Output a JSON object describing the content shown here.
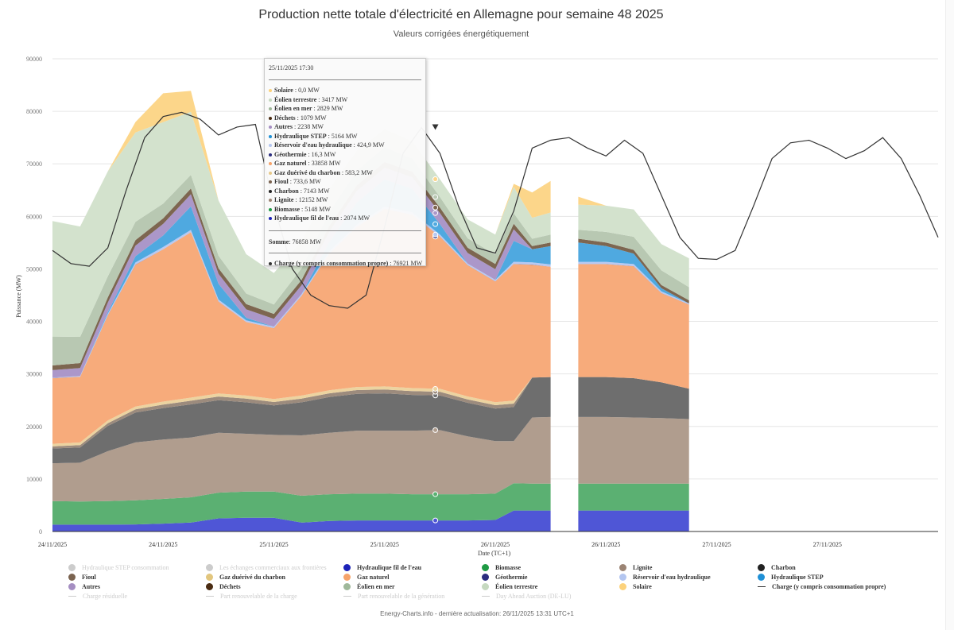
{
  "header": {
    "title": "Production nette totale d'électricité en Allemagne pour semaine 48 2025",
    "subtitle": "Valeurs corrigées énergétiquement"
  },
  "footer": "Energy-Charts.info - dernière actualisation: 26/11/2025 13:31 UTC+1",
  "tooltip": {
    "date": "25/11/2025 17:30",
    "rows": [
      {
        "label": "Solaire",
        "value": "0,0 MW",
        "color": "#fcd27c"
      },
      {
        "label": "Éolien terrestre",
        "value": "3417 MW",
        "color": "#c6d9c0"
      },
      {
        "label": "Éolien en mer",
        "value": "2829 MW",
        "color": "#9fb89a"
      },
      {
        "label": "Déchets",
        "value": "1079 MW",
        "color": "#4a2c12"
      },
      {
        "label": "Autres",
        "value": "2238 MW",
        "color": "#a58ec2"
      },
      {
        "label": "Hydraulique STEP",
        "value": "5164 MW",
        "color": "#1f90d6"
      },
      {
        "label": "Réservoir d'eau hydraulique",
        "value": "424,9 MW",
        "color": "#b4c6f0"
      },
      {
        "label": "Géothermie",
        "value": "16,3 MW",
        "color": "#2b2d7f"
      },
      {
        "label": "Gaz naturel",
        "value": "33858 MW",
        "color": "#f6a36a"
      },
      {
        "label": "Gaz duérivé du charbon",
        "value": "583,2 MW",
        "color": "#e7c98a"
      },
      {
        "label": "Fioul",
        "value": "733,6 MW",
        "color": "#7a6350"
      },
      {
        "label": "Charbon",
        "value": "7143 MW",
        "color": "#222222"
      },
      {
        "label": "Lignite",
        "value": "12152 MW",
        "color": "#9b8474"
      },
      {
        "label": "Biomasse",
        "value": "5148 MW",
        "color": "#1e9a44"
      },
      {
        "label": "Hydraulique fil de l'eau",
        "value": "2074 MW",
        "color": "#1c22b8"
      }
    ],
    "sum_label": "Somme",
    "sum_value": "76858 MW",
    "load_label": "Charge (y compris consommation propre)",
    "load_value": "76921 MW"
  },
  "legend": [
    {
      "label": "Hydraulique STEP consommation",
      "type": "dot",
      "color": "#cccccc",
      "active": false
    },
    {
      "label": "Les échanges commerciaux aux frontières",
      "type": "dot",
      "color": "#cccccc",
      "active": false
    },
    {
      "label": "Hydraulique fil de l'eau",
      "type": "dot",
      "color": "#1c22b8",
      "active": true
    },
    {
      "label": "Biomasse",
      "type": "dot",
      "color": "#1e9a44",
      "active": true
    },
    {
      "label": "Lignite",
      "type": "dot",
      "color": "#9b8474",
      "active": true
    },
    {
      "label": "Charbon",
      "type": "dot",
      "color": "#222222",
      "active": true
    },
    {
      "label": "Fioul",
      "type": "dot",
      "color": "#7a6350",
      "active": true
    },
    {
      "label": "Gaz duérivé du charbon",
      "type": "dot",
      "color": "#e2c67e",
      "active": true
    },
    {
      "label": "Gaz naturel",
      "type": "dot",
      "color": "#f6a36a",
      "active": true
    },
    {
      "label": "Géothermie",
      "type": "dot",
      "color": "#2b2d7f",
      "active": true
    },
    {
      "label": "Réservoir d'eau hydraulique",
      "type": "dot",
      "color": "#b4c6f0",
      "active": true
    },
    {
      "label": "Hydraulique STEP",
      "type": "dot",
      "color": "#1f90d6",
      "active": true
    },
    {
      "label": "Autres",
      "type": "dot",
      "color": "#a58ec2",
      "active": true
    },
    {
      "label": "Déchets",
      "type": "dot",
      "color": "#4a2c12",
      "active": true
    },
    {
      "label": "Éolien en mer",
      "type": "dot",
      "color": "#9fb89a",
      "active": true
    },
    {
      "label": "Éolien terrestre",
      "type": "dot",
      "color": "#c6d9c0",
      "active": true
    },
    {
      "label": "Solaire",
      "type": "dot",
      "color": "#fcd27c",
      "active": true
    },
    {
      "label": "Charge (y compris consommation propre)",
      "type": "line",
      "color": "#333333",
      "active": true
    },
    {
      "label": "Charge résiduelle",
      "type": "line",
      "color": "#cccccc",
      "active": false
    },
    {
      "label": "Part renouvelable de la charge",
      "type": "line",
      "color": "#cccccc",
      "active": false
    },
    {
      "label": "Part renouvelable de la génération",
      "type": "line",
      "color": "#cccccc",
      "active": false
    },
    {
      "label": "Day Ahead Auction (DE-LU)",
      "type": "line",
      "color": "#cccccc",
      "active": false
    }
  ],
  "chart_data": {
    "type": "area",
    "stacked": true,
    "title": "Production nette totale d'électricité en Allemagne pour semaine 48 2025",
    "subtitle": "Valeurs corrigées énergétiquement",
    "xlabel": "Date (TC+1)",
    "ylabel": "Puissance (MW)",
    "ylim": [
      0,
      90000
    ],
    "yticks": [
      0,
      10000,
      20000,
      30000,
      40000,
      50000,
      60000,
      70000,
      80000,
      90000
    ],
    "xticks": [
      "24/11/2025",
      "24/11/2025",
      "25/11/2025",
      "25/11/2025",
      "26/11/2025",
      "26/11/2025",
      "27/11/2025",
      "27/11/2025"
    ],
    "xtick_hours": [
      0,
      12,
      24,
      36,
      48,
      60,
      72,
      84
    ],
    "x_range_hours": [
      0,
      96
    ],
    "grid": true,
    "legend_position": "bottom",
    "x_hours": [
      0,
      3,
      6,
      9,
      12,
      15,
      18,
      21,
      24,
      27,
      30,
      33,
      36,
      39,
      42,
      45,
      48,
      50,
      52,
      54,
      57,
      60,
      63,
      66,
      69
    ],
    "series": [
      {
        "name": "Hydraulique fil de l'eau",
        "color": "#4f56d6",
        "values": [
          1300,
          1300,
          1300,
          1350,
          1500,
          1700,
          2500,
          2600,
          2600,
          1700,
          2000,
          2100,
          2100,
          2100,
          2100,
          2100,
          2200,
          4000,
          4000,
          4000,
          4000,
          4000,
          4000,
          4000,
          4000
        ]
      },
      {
        "name": "Biomasse",
        "color": "#5bb072",
        "values": [
          4500,
          4400,
          4500,
          4600,
          4700,
          4800,
          4900,
          5000,
          5000,
          5100,
          5100,
          5100,
          5100,
          5000,
          5000,
          5000,
          5000,
          5200,
          5100,
          5100,
          5100,
          5100,
          5100,
          5100,
          5100
        ]
      },
      {
        "name": "Lignite",
        "color": "#b09d8e",
        "values": [
          7200,
          7400,
          9500,
          11000,
          11300,
          11400,
          11400,
          11000,
          10800,
          11500,
          11700,
          12000,
          12000,
          12100,
          12200,
          11000,
          10000,
          8000,
          12600,
          12700,
          12700,
          12700,
          12600,
          12500,
          12300
        ]
      },
      {
        "name": "Charbon",
        "color": "#6e6e6e",
        "values": [
          2800,
          2900,
          4800,
          5700,
          6000,
          6300,
          6200,
          6000,
          5600,
          6300,
          6800,
          7000,
          7100,
          6800,
          6600,
          6400,
          6200,
          6500,
          7600,
          7600,
          7600,
          7600,
          7500,
          6800,
          5800
        ]
      },
      {
        "name": "Fioul",
        "color": "#9c8b7d",
        "values": [
          400,
          450,
          500,
          600,
          650,
          700,
          700,
          700,
          650,
          700,
          700,
          730,
          730,
          730,
          700,
          650,
          650,
          650,
          0,
          0,
          0,
          0,
          0,
          0,
          0
        ]
      },
      {
        "name": "Gaz duérivé du charbon",
        "color": "#ecd3a0",
        "values": [
          500,
          500,
          550,
          550,
          580,
          580,
          580,
          580,
          560,
          580,
          580,
          580,
          583,
          580,
          560,
          560,
          560,
          560,
          0,
          0,
          0,
          0,
          0,
          0,
          0
        ]
      },
      {
        "name": "Gaz naturel",
        "color": "#f7ab7b",
        "values": [
          12500,
          12500,
          20000,
          27000,
          29000,
          31500,
          17500,
          14000,
          13500,
          19000,
          26000,
          30500,
          33800,
          33000,
          29000,
          25000,
          23000,
          26000,
          21500,
          21000,
          21500,
          21500,
          21300,
          17000,
          16000
        ]
      },
      {
        "name": "Géothermie",
        "color": "#2b2d7f",
        "values": [
          16,
          16,
          16,
          16,
          16,
          16,
          16,
          16,
          16,
          16,
          16,
          16,
          16,
          16,
          16,
          16,
          16,
          16,
          16,
          16,
          16,
          16,
          16,
          16,
          16
        ]
      },
      {
        "name": "Réservoir d'eau hydraulique",
        "color": "#b8c9f2",
        "values": [
          100,
          150,
          300,
          400,
          420,
          420,
          350,
          300,
          250,
          300,
          380,
          420,
          425,
          420,
          350,
          300,
          300,
          420,
          420,
          420,
          420,
          420,
          400,
          300,
          200
        ]
      },
      {
        "name": "Hydraulique STEP",
        "color": "#4fa9e0",
        "values": [
          0,
          0,
          300,
          1200,
          2200,
          4500,
          3000,
          500,
          0,
          0,
          1800,
          4200,
          5164,
          4500,
          2000,
          0,
          0,
          4000,
          2500,
          3500,
          3700,
          3000,
          2000,
          600,
          0
        ]
      },
      {
        "name": "Autres",
        "color": "#ab97c9",
        "values": [
          1400,
          1500,
          1800,
          2000,
          2200,
          2300,
          1900,
          1600,
          1500,
          1700,
          2000,
          2200,
          2238,
          2200,
          2100,
          2000,
          2000,
          2200,
          0,
          0,
          0,
          0,
          0,
          0,
          0
        ]
      },
      {
        "name": "Déchets",
        "color": "#7d6650",
        "values": [
          900,
          950,
          1000,
          1050,
          1070,
          1080,
          1050,
          1000,
          950,
          1000,
          1050,
          1070,
          1079,
          1070,
          1050,
          1000,
          1000,
          1050,
          600,
          700,
          700,
          700,
          700,
          600,
          600
        ]
      },
      {
        "name": "Éolien en mer",
        "color": "#b8c8b2",
        "values": [
          5500,
          5000,
          4000,
          3500,
          2800,
          2600,
          2400,
          2000,
          1800,
          2200,
          2600,
          2800,
          2829,
          2500,
          2000,
          1800,
          1800,
          2000,
          1400,
          1500,
          1700,
          2000,
          2500,
          2800,
          2500
        ]
      },
      {
        "name": "Éolien terrestre",
        "color": "#d3e2cd",
        "values": [
          22000,
          21000,
          20000,
          17000,
          15500,
          12000,
          10500,
          7500,
          6000,
          5200,
          4500,
          3800,
          3417,
          3300,
          3400,
          3600,
          3800,
          5000,
          4000,
          4200,
          4800,
          5000,
          5200,
          5000,
          5500
        ]
      },
      {
        "name": "Solaire",
        "color": "#fcd68a",
        "values": [
          0,
          0,
          0,
          2000,
          5500,
          4000,
          0,
          0,
          0,
          0,
          0,
          0,
          0,
          0,
          0,
          0,
          0,
          600,
          4800,
          6000,
          1500,
          0,
          0,
          0,
          0
        ]
      }
    ],
    "load": {
      "name": "Charge (y compris consommation propre)",
      "color": "#333333",
      "x_hours": [
        0,
        2,
        4,
        6,
        8,
        10,
        12,
        14,
        16,
        18,
        20,
        22,
        24,
        26,
        28,
        30,
        32,
        34,
        36,
        38,
        40,
        42,
        44,
        46,
        48,
        50,
        52,
        54,
        56,
        58,
        60,
        62,
        64,
        66,
        68,
        70,
        72,
        74,
        76,
        78,
        80,
        82,
        84,
        86,
        88,
        90,
        92,
        94,
        96
      ],
      "values": [
        53500,
        51000,
        50500,
        54000,
        65000,
        75000,
        79000,
        79800,
        78500,
        75500,
        77000,
        77500,
        62000,
        50000,
        45000,
        43000,
        42500,
        45000,
        58000,
        72000,
        76900,
        72000,
        62000,
        54000,
        53000,
        61000,
        73000,
        74500,
        75000,
        73000,
        71500,
        74500,
        72000,
        64000,
        56000,
        52000,
        51800,
        53500,
        62000,
        71000,
        74000,
        74500,
        73000,
        71000,
        72500,
        75000,
        71000,
        64000,
        56000
      ]
    },
    "tooltip_hours": 41.5,
    "gap_hours": [
      54.5,
      57
    ]
  }
}
